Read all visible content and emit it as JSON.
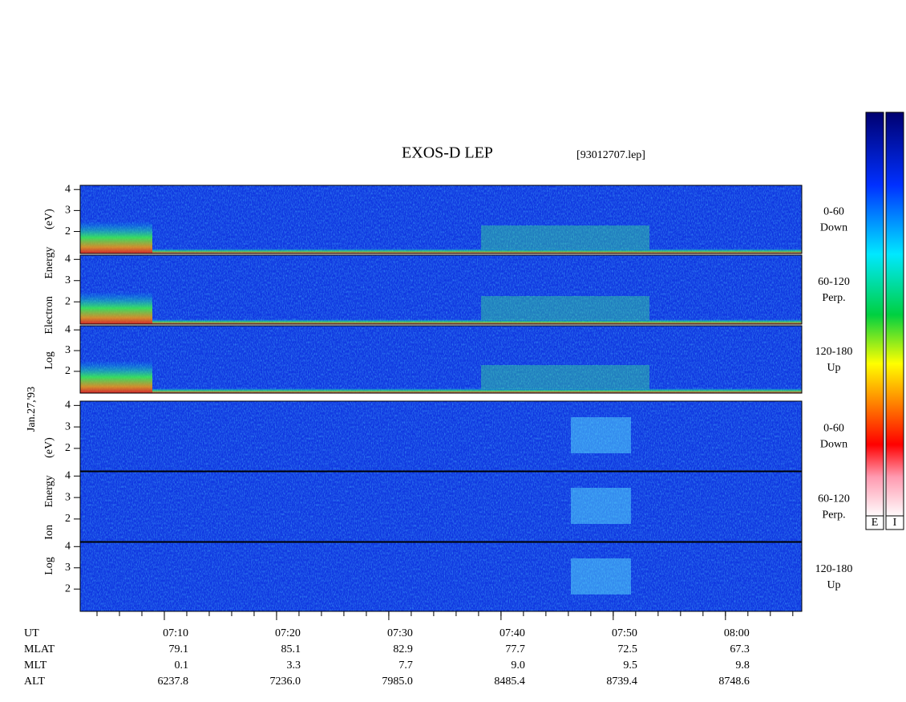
{
  "chart_data": {
    "type": "spectrogram",
    "title": "EXOS-D LEP",
    "file": "[93012707.lep]",
    "date": "Jan.27,'93",
    "axis_labels": [
      "Log Electron Energy (eV)",
      "Log Ion Energy (eV)"
    ],
    "panels": [
      {
        "angle": "0-60",
        "direction": "Down"
      },
      {
        "angle": "60-120",
        "direction": "Perp."
      },
      {
        "angle": "120-180",
        "direction": "Up"
      },
      {
        "angle": "0-60",
        "direction": "Down"
      },
      {
        "angle": "60-120",
        "direction": "Perp."
      },
      {
        "angle": "120-180",
        "direction": "Up"
      }
    ],
    "ylim": [
      0.95,
      4.2
    ],
    "yticks": [
      2,
      3,
      4
    ],
    "xlim": [
      422.5,
      486.8
    ],
    "xticks": [
      {
        "value": 430,
        "label": "07:10"
      },
      {
        "value": 440,
        "label": "07:20"
      },
      {
        "value": 450,
        "label": "07:30"
      },
      {
        "value": 460,
        "label": "07:40"
      },
      {
        "value": 470,
        "label": "07:50"
      },
      {
        "value": 480,
        "label": "08:00"
      }
    ],
    "ephemeris": {
      "labels": [
        "UT",
        "MLAT",
        "MLT",
        "ALT"
      ],
      "rows": [
        [
          "79.1",
          "85.1",
          "82.9",
          "77.7",
          "72.5",
          "67.3"
        ],
        [
          "0.1",
          "3.3",
          "7.7",
          "9.0",
          "9.5",
          "9.8"
        ],
        [
          "6237.8",
          "7236.0",
          "7985.0",
          "8485.4",
          "8739.4",
          "8748.6"
        ]
      ]
    },
    "colorbar_labels": [
      "E",
      "I"
    ]
  }
}
